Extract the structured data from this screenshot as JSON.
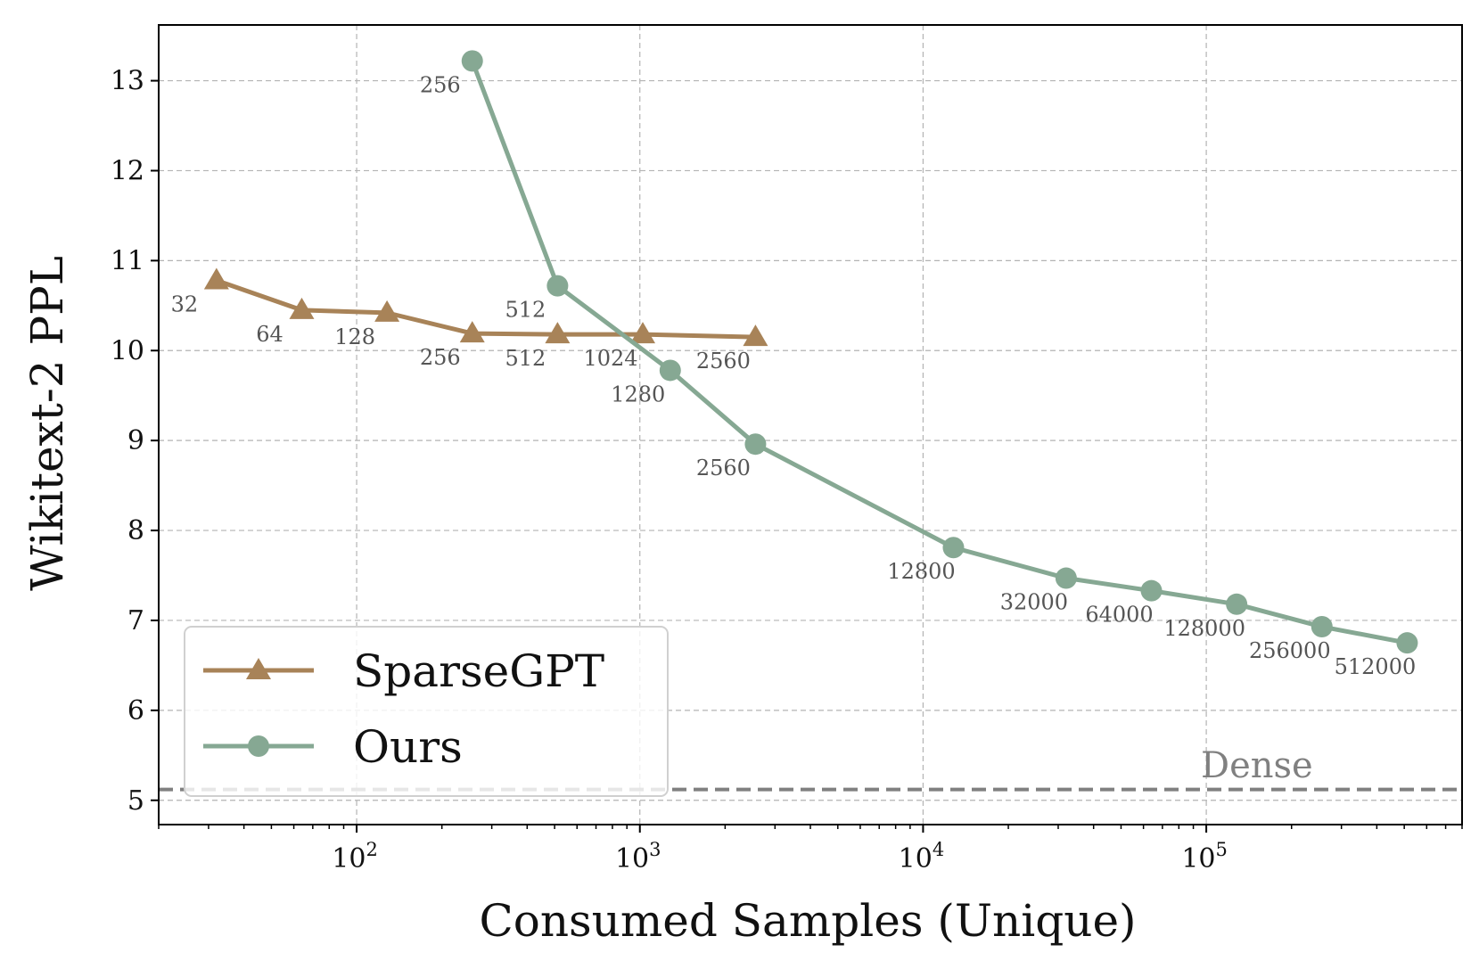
{
  "chart_data": {
    "type": "line",
    "xscale": "log",
    "xlabel": "Consumed Samples (Unique)",
    "ylabel": "Wikitext-2 PPL",
    "xlim": [
      20,
      800000
    ],
    "ylim": [
      4.73,
      13.62
    ],
    "yticks": [
      5,
      6,
      7,
      8,
      9,
      10,
      11,
      12,
      13
    ],
    "xticks": [
      {
        "value": 100,
        "base": "10",
        "exp": "2"
      },
      {
        "value": 1000,
        "base": "10",
        "exp": "3"
      },
      {
        "value": 10000,
        "base": "10",
        "exp": "4"
      },
      {
        "value": 100000,
        "base": "10",
        "exp": "5"
      }
    ],
    "grid": true,
    "legend_position": "lower-left",
    "reference_line": {
      "label": "Dense",
      "y": 5.12,
      "color": "#808080"
    },
    "series": [
      {
        "name": "SparseGPT",
        "color": "#a88358",
        "marker": "triangle",
        "points": [
          {
            "x": 32,
            "y": 10.78,
            "label": "32"
          },
          {
            "x": 64,
            "y": 10.45,
            "label": "64"
          },
          {
            "x": 128,
            "y": 10.42,
            "label": "128"
          },
          {
            "x": 256,
            "y": 10.19,
            "label": "256"
          },
          {
            "x": 512,
            "y": 10.18,
            "label": "512"
          },
          {
            "x": 1024,
            "y": 10.18,
            "label": "1024"
          },
          {
            "x": 2560,
            "y": 10.15,
            "label": "2560"
          }
        ]
      },
      {
        "name": "Ours",
        "color": "#86a893",
        "marker": "circle",
        "points": [
          {
            "x": 256,
            "y": 13.22,
            "label": "256"
          },
          {
            "x": 512,
            "y": 10.72,
            "label": "512"
          },
          {
            "x": 1280,
            "y": 9.78,
            "label": "1280"
          },
          {
            "x": 2560,
            "y": 8.96,
            "label": "2560"
          },
          {
            "x": 12800,
            "y": 7.81,
            "label": "12800"
          },
          {
            "x": 32000,
            "y": 7.47,
            "label": "32000"
          },
          {
            "x": 64000,
            "y": 7.33,
            "label": "64000"
          },
          {
            "x": 128000,
            "y": 7.18,
            "label": "128000"
          },
          {
            "x": 256000,
            "y": 6.93,
            "label": "256000"
          },
          {
            "x": 512000,
            "y": 6.75,
            "label": "512000"
          }
        ]
      }
    ]
  }
}
